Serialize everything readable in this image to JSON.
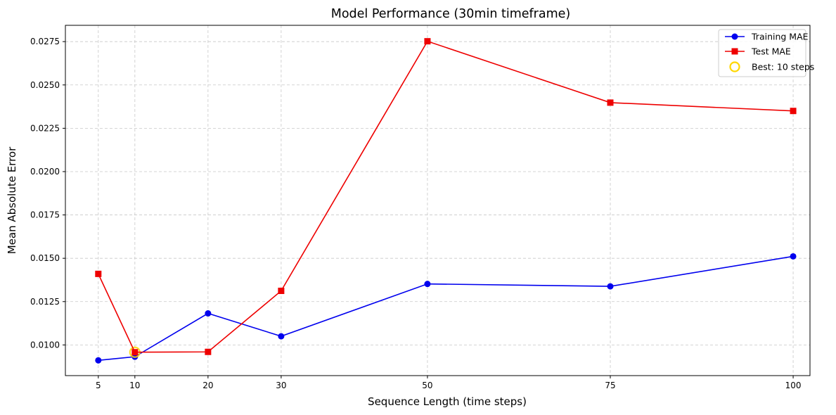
{
  "chart_data": {
    "type": "line",
    "title": "Model Performance (30min timeframe)",
    "xlabel": "Sequence Length (time steps)",
    "ylabel": "Mean Absolute Error",
    "x": [
      5,
      10,
      20,
      30,
      50,
      75,
      100
    ],
    "x_tick_labels": [
      "5",
      "10",
      "20",
      "30",
      "50",
      "75",
      "100"
    ],
    "xlim": [
      0.5,
      102.3
    ],
    "ylim": [
      0.00823,
      0.02844
    ],
    "y_ticks": [
      0.01,
      0.0125,
      0.015,
      0.0175,
      0.02,
      0.0225,
      0.025,
      0.0275
    ],
    "y_tick_labels": [
      "0.0100",
      "0.0125",
      "0.0150",
      "0.0175",
      "0.0200",
      "0.0225",
      "0.0250",
      "0.0275"
    ],
    "grid": true,
    "legend_position": "top-right",
    "series": [
      {
        "name": "Training MAE",
        "color": "#0000ee",
        "marker": "circle",
        "values": [
          0.00911,
          0.00932,
          0.01182,
          0.0105,
          0.01352,
          0.01338,
          0.01511
        ]
      },
      {
        "name": "Test MAE",
        "color": "#ee0000",
        "marker": "square",
        "values": [
          0.0141,
          0.00958,
          0.0096,
          0.01312,
          0.02752,
          0.02398,
          0.0235
        ]
      }
    ],
    "highlight": {
      "name": "Best: 10 steps",
      "x": 10,
      "y": 0.00958,
      "color": "#ffd700",
      "marker": "hollow-circle"
    }
  }
}
